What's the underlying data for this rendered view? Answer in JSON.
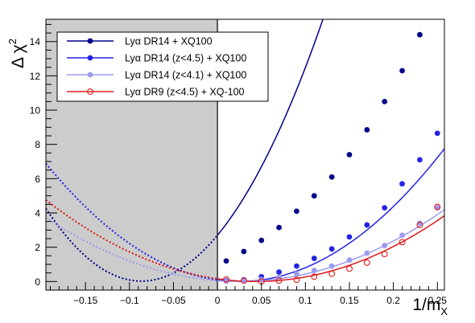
{
  "chart_data": {
    "type": "scatter",
    "ylabel": "Δ χ",
    "ylabel_sup": "2",
    "xlabel": "1/m",
    "xlabel_sub": "X",
    "xlim": [
      -0.195,
      0.258
    ],
    "ylim": [
      -0.5,
      15.3
    ],
    "shaded_region": [
      -0.195,
      0
    ],
    "grid": false,
    "legend_position": "top-left",
    "x_ticks": [
      -0.15,
      -0.1,
      -0.05,
      0,
      0.05,
      0.1,
      0.15,
      0.2,
      0.25
    ],
    "x_tick_labels": [
      "−0.15",
      "−0.1",
      "−0.05",
      "0",
      "0.05",
      "0.1",
      "0.15",
      "0.2",
      "0.25"
    ],
    "y_ticks": [
      0,
      2,
      4,
      6,
      8,
      10,
      12,
      14
    ],
    "y_tick_labels": [
      "0",
      "2",
      "4",
      "6",
      "8",
      "10",
      "12",
      "14"
    ],
    "series": [
      {
        "name": "Lyα DR14 + XQ100",
        "color": "#00008b",
        "marker": "filled",
        "fit": {
          "a": 359.0,
          "b": 62.0,
          "c": 2.7,
          "x_start": -0.195
        },
        "x": [
          0.01,
          0.03,
          0.05,
          0.07,
          0.09,
          0.11,
          0.13,
          0.15,
          0.17,
          0.19,
          0.21,
          0.23
        ],
        "y": [
          1.2,
          1.75,
          2.4,
          3.15,
          4.1,
          5.0,
          6.1,
          7.4,
          8.85,
          10.5,
          12.3,
          14.4
        ]
      },
      {
        "name": "Lyα DR14 (z<4.5) + XQ100",
        "color": "#2323e6",
        "marker": "filled",
        "fit": {
          "a": 142.5,
          "b": -7.06,
          "c": 0.088,
          "x_start": -0.195
        },
        "x": [
          0.01,
          0.03,
          0.05,
          0.07,
          0.09,
          0.11,
          0.13,
          0.15,
          0.17,
          0.19,
          0.21,
          0.23,
          0.25
        ],
        "y": [
          0.05,
          0.1,
          0.28,
          0.55,
          0.9,
          1.35,
          1.9,
          2.6,
          3.3,
          4.3,
          5.7,
          7.1,
          8.65
        ]
      },
      {
        "name": "Lyα DR14 (z<4.1) + XQ100",
        "color": "#9b9bf2",
        "marker": "filled",
        "fit": {
          "a": 77.0,
          "b": -3.83,
          "c": 0.048,
          "x_start": -0.195
        },
        "x": [
          0.01,
          0.03,
          0.05,
          0.07,
          0.09,
          0.11,
          0.13,
          0.15,
          0.17,
          0.19,
          0.21,
          0.23,
          0.25
        ],
        "y": [
          0.02,
          0.05,
          0.12,
          0.25,
          0.45,
          0.65,
          0.9,
          1.25,
          1.65,
          2.1,
          2.7,
          3.4,
          4.3
        ]
      },
      {
        "name": "Lyα DR9 (z<4.5) + XQ-100",
        "color": "#e01a1a",
        "marker": "open",
        "fit": {
          "a": 83.5,
          "b": -7.3,
          "c": 0.16,
          "x_start": -0.195
        },
        "x": [
          0.01,
          0.03,
          0.05,
          0.07,
          0.09,
          0.11,
          0.13,
          0.15,
          0.17,
          0.19,
          0.21,
          0.23,
          0.25
        ],
        "y": [
          0.12,
          0.05,
          0.0,
          0.05,
          0.1,
          0.28,
          0.45,
          0.75,
          1.1,
          1.6,
          2.3,
          3.3,
          4.35
        ]
      }
    ]
  }
}
